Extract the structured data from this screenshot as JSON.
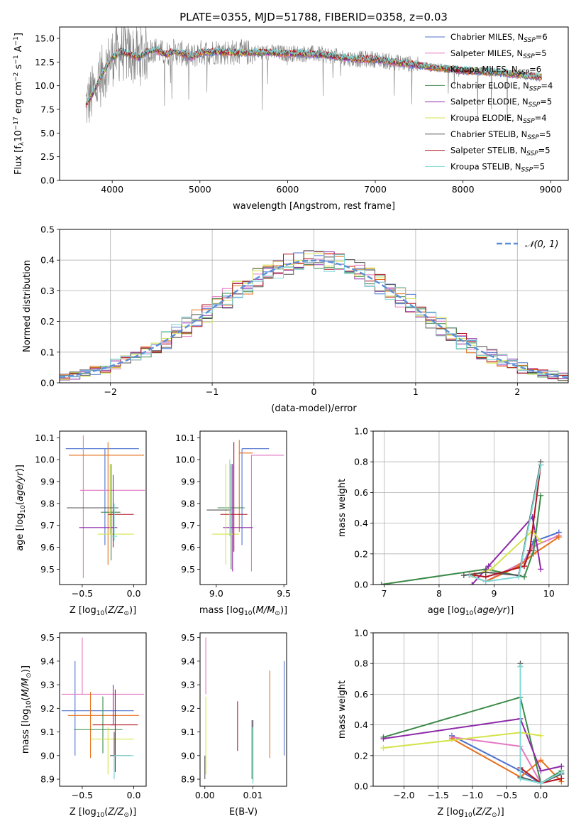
{
  "figure": {
    "title": "PLATE=0355, MJD=51788, FIBERID=0358, z=0.03"
  },
  "models": [
    {
      "name": "Chabrier MILES, N$_{SSP}$=6",
      "label_main": "Chabrier MILES, N",
      "label_sub": "SSP",
      "label_tail": "=6",
      "color": "#4c72d0"
    },
    {
      "name": "Salpeter MILES, N$_{SSP}$=5",
      "label_main": "Salpeter MILES, N",
      "label_sub": "SSP",
      "label_tail": "=5",
      "color": "#e377c2"
    },
    {
      "name": "Kroupa MILES, N$_{SSP}$=6",
      "label_main": "Kroupa MILES, N",
      "label_sub": "SSP",
      "label_tail": "=6",
      "color": "#e6711d"
    },
    {
      "name": "Chabrier ELODIE, N$_{SSP}$=4",
      "label_main": "Chabrier ELODIE, N",
      "label_sub": "SSP",
      "label_tail": "=4",
      "color": "#3d8a4a"
    },
    {
      "name": "Salpeter ELODIE, N$_{SSP}$=5",
      "label_main": "Salpeter ELODIE, N",
      "label_sub": "SSP",
      "label_tail": "=5",
      "color": "#8e2aa8"
    },
    {
      "name": "Kroupa ELODIE, N$_{SSP}$=4",
      "label_main": "Kroupa ELODIE, N",
      "label_sub": "SSP",
      "label_tail": "=4",
      "color": "#d4e34a"
    },
    {
      "name": "Chabrier STELIB, N$_{SSP}$=5",
      "label_main": "Chabrier STELIB, N",
      "label_sub": "SSP",
      "label_tail": "=5",
      "color": "#555555"
    },
    {
      "name": "Salpeter STELIB, N$_{SSP}$=5",
      "label_main": "Salpeter STELIB, N",
      "label_sub": "SSP",
      "label_tail": "=5",
      "color": "#b0141e"
    },
    {
      "name": "Kroupa STELIB, N$_{SSP}$=5",
      "label_main": "Kroupa STELIB, N",
      "label_sub": "SSP",
      "label_tail": "=5",
      "color": "#7fd8d8"
    }
  ],
  "chart_data": [
    {
      "id": "spectrum",
      "type": "line",
      "title": "PLATE=0355, MJD=51788, FIBERID=0358, z=0.03",
      "xlabel": "wavelength [Angstrom, rest frame]",
      "ylabel": "Flux [f$_\\lambda$10$^{-17}$ erg cm$^{-2}$ s$^{-1}$ A$^{-1}$]",
      "xlim": [
        3400,
        9200
      ],
      "ylim": [
        0,
        16.2
      ],
      "xticks": [
        4000,
        5000,
        6000,
        7000,
        8000,
        9000
      ],
      "yticks": [
        0.0,
        2.5,
        5.0,
        7.5,
        10.0,
        12.5,
        15.0
      ],
      "legend_position": "upper right",
      "data_series": {
        "name": "data",
        "color": "#808080",
        "x_range": [
          3700,
          8900
        ]
      },
      "model_curve": {
        "x": [
          3700,
          3800,
          3900,
          4000,
          4100,
          4200,
          4300,
          4400,
          4500,
          4600,
          4700,
          4800,
          4900,
          5000,
          5200,
          5400,
          5600,
          5800,
          6000,
          6200,
          6400,
          6600,
          6800,
          7000,
          7200,
          7400,
          7600,
          7800,
          8000,
          8200,
          8400,
          8600,
          8800,
          8900
        ],
        "y": [
          8.0,
          9.5,
          11.5,
          13.0,
          13.6,
          13.3,
          13.0,
          13.6,
          13.8,
          13.3,
          13.6,
          13.4,
          13.0,
          13.5,
          13.6,
          13.5,
          13.5,
          13.5,
          13.4,
          13.4,
          13.3,
          13.0,
          12.8,
          12.8,
          12.5,
          12.3,
          12.0,
          11.8,
          11.6,
          11.5,
          11.4,
          11.2,
          11.0,
          10.9
        ]
      },
      "model_x_range": [
        3700,
        8900
      ]
    },
    {
      "id": "residuals",
      "type": "histogram",
      "xlabel": "(data-model)/error",
      "ylabel": "Normed distribution",
      "xlim": [
        -2.5,
        2.5
      ],
      "ylim": [
        0,
        0.5
      ],
      "xticks": [
        -2,
        -1,
        0,
        1,
        2
      ],
      "yticks": [
        0.0,
        0.1,
        0.2,
        0.3,
        0.4,
        0.5
      ],
      "reference_curve": {
        "name": "$\\mathcal{N}(0,1)$",
        "label": "𝒩(0, 1)",
        "color": "#5a8fd6",
        "style": "dashed"
      },
      "bin_width": 0.1,
      "bin_start": -2.5
    },
    {
      "id": "age-vs-Z",
      "type": "errorbar",
      "xlabel": "Z [log$_{10}$(Z/Z$_\\odot$)]",
      "ylabel": "age  [log$_{10}$(age/yr)]",
      "xlim": [
        -0.72,
        0.12
      ],
      "ylim": [
        9.43,
        10.13
      ],
      "xticks": [
        -0.5,
        0.0
      ],
      "yticks": [
        9.5,
        9.6,
        9.7,
        9.8,
        9.9,
        10.0,
        10.1
      ],
      "points": [
        {
          "model": 0,
          "x": -0.28,
          "xerr": [
            0.38,
            0.33
          ],
          "y": 10.05,
          "yerr": [
            0.44,
            0.0
          ]
        },
        {
          "model": 1,
          "x": -0.49,
          "xerr": [
            0.03,
            0.6
          ],
          "y": 9.86,
          "yerr": [
            0.4,
            0.25
          ]
        },
        {
          "model": 2,
          "x": -0.25,
          "xerr": [
            0.38,
            0.35
          ],
          "y": 10.02,
          "yerr": [
            0.5,
            0.06
          ]
        },
        {
          "model": 3,
          "x": -0.22,
          "xerr": [
            0.1,
            0.09
          ],
          "y": 9.76,
          "yerr": [
            0.22,
            0.22
          ]
        },
        {
          "model": 4,
          "x": -0.33,
          "xerr": [
            0.2,
            0.17
          ],
          "y": 9.69,
          "yerr": [
            0.0,
            0.0
          ]
        },
        {
          "model": 5,
          "x": -0.23,
          "xerr": [
            0.12,
            0.23
          ],
          "y": 9.66,
          "yerr": [
            0.0,
            0.32
          ]
        },
        {
          "model": 6,
          "x": -0.2,
          "xerr": [
            0.45,
            0.05
          ],
          "y": 9.78,
          "yerr": [
            0.15,
            0.15
          ]
        },
        {
          "model": 7,
          "x": -0.2,
          "xerr": [
            0.05,
            0.2
          ],
          "y": 9.75,
          "yerr": [
            0.15,
            0.02
          ]
        },
        {
          "model": 8,
          "x": -0.19,
          "xerr": [
            0.03,
            0.03
          ],
          "y": 9.65,
          "yerr": [
            0.02,
            0.15
          ]
        }
      ]
    },
    {
      "id": "age-vs-mass",
      "type": "errorbar",
      "xlabel": "mass [log$_{10}$(M/M$_\\odot$)]",
      "ylabel": "",
      "xlim": [
        8.88,
        9.52
      ],
      "ylim": [
        9.43,
        10.13
      ],
      "xticks": [
        9.0,
        9.5
      ],
      "yticks": [
        9.5,
        9.6,
        9.7,
        9.8,
        9.9,
        10.0,
        10.1
      ],
      "points": [
        {
          "model": 0,
          "x": 9.19,
          "xerr": [
            0.0,
            0.2
          ],
          "y": 10.05,
          "yerr": [
            0.44,
            0.0
          ]
        },
        {
          "model": 1,
          "x": 9.26,
          "xerr": [
            0.0,
            0.24
          ],
          "y": 10.02,
          "yerr": [
            0.53,
            0.0
          ]
        },
        {
          "model": 2,
          "x": 9.17,
          "xerr": [
            0.0,
            0.1
          ],
          "y": 10.03,
          "yerr": [
            0.36,
            0.06
          ]
        },
        {
          "model": 3,
          "x": 9.11,
          "xerr": [
            0.1,
            0.1
          ],
          "y": 9.78,
          "yerr": [
            0.28,
            0.2
          ]
        },
        {
          "model": 4,
          "x": 9.12,
          "xerr": [
            0.07,
            0.15
          ],
          "y": 9.69,
          "yerr": [
            0.2,
            0.29
          ]
        },
        {
          "model": 5,
          "x": 9.07,
          "xerr": [
            0.1,
            0.1
          ],
          "y": 9.66,
          "yerr": [
            0.14,
            0.32
          ]
        },
        {
          "model": 6,
          "x": 9.11,
          "xerr": [
            0.18,
            0.0
          ],
          "y": 9.77,
          "yerr": [
            0.0,
            0.0
          ]
        },
        {
          "model": 7,
          "x": 9.13,
          "xerr": [
            0.1,
            0.1
          ],
          "y": 9.75,
          "yerr": [
            0.17,
            0.33
          ]
        },
        {
          "model": 8,
          "x": 9.1,
          "xerr": [
            0.0,
            0.0
          ],
          "y": 9.65,
          "yerr": [
            0.0,
            0.35
          ]
        }
      ]
    },
    {
      "id": "weight-vs-age",
      "type": "line",
      "xlabel": "age  [log$_{10}$(age/yr)]",
      "ylabel": "mass weight",
      "xlim": [
        6.8,
        10.35
      ],
      "ylim": [
        0,
        1.0
      ],
      "xticks": [
        7,
        8,
        9,
        10
      ],
      "yticks": [
        0.0,
        0.2,
        0.4,
        0.6,
        0.8,
        1.0
      ],
      "series": [
        {
          "model": 0,
          "x": [
            8.55,
            8.85,
            9.55,
            9.72,
            10.18
          ],
          "y": [
            0.06,
            0.02,
            0.15,
            0.28,
            0.34
          ]
        },
        {
          "model": 1,
          "x": [
            8.55,
            8.85,
            9.55,
            9.72,
            10.18
          ],
          "y": [
            0.06,
            0.02,
            0.15,
            0.25,
            0.32
          ]
        },
        {
          "model": 2,
          "x": [
            8.55,
            8.85,
            9.45,
            9.72,
            10.18
          ],
          "y": [
            0.06,
            0.02,
            0.12,
            0.2,
            0.31
          ]
        },
        {
          "model": 3,
          "x": [
            6.95,
            8.85,
            9.55,
            9.72,
            9.85
          ],
          "y": [
            0.0,
            0.1,
            0.05,
            0.22,
            0.58
          ]
        },
        {
          "model": 4,
          "x": [
            8.6,
            8.9,
            9.7,
            9.85
          ],
          "y": [
            0.0,
            0.12,
            0.44,
            0.1
          ]
        },
        {
          "model": 5,
          "x": [
            8.6,
            8.95,
            9.7,
            9.85
          ],
          "y": [
            0.06,
            0.1,
            0.35,
            0.28
          ]
        },
        {
          "model": 6,
          "x": [
            8.45,
            8.85,
            9.45,
            9.85
          ],
          "y": [
            0.06,
            0.08,
            0.06,
            0.8
          ]
        },
        {
          "model": 7,
          "x": [
            8.65,
            8.85,
            9.55,
            9.65,
            9.85
          ],
          "y": [
            0.06,
            0.05,
            0.12,
            0.22,
            0.78
          ]
        },
        {
          "model": 8,
          "x": [
            8.55,
            8.85,
            9.45,
            9.85
          ],
          "y": [
            0.06,
            0.02,
            0.05,
            0.78
          ]
        }
      ]
    },
    {
      "id": "mass-vs-Z",
      "type": "errorbar",
      "xlabel": "Z [log$_{10}$(Z/Z$_\\odot$)]",
      "ylabel": "mass [log$_{10}$(M/M$_\\odot$)]",
      "xlim": [
        -0.72,
        0.12
      ],
      "ylim": [
        8.87,
        9.52
      ],
      "xticks": [
        -0.5,
        0.0
      ],
      "yticks": [
        8.9,
        9.0,
        9.1,
        9.2,
        9.3,
        9.4,
        9.5
      ],
      "points": [
        {
          "model": 0,
          "x": -0.57,
          "xerr": [
            0.13,
            0.57
          ],
          "y": 9.19,
          "yerr": [
            0.19,
            0.21
          ]
        },
        {
          "model": 1,
          "x": -0.5,
          "xerr": [
            0.2,
            0.6
          ],
          "y": 9.26,
          "yerr": [
            0.0,
            0.24
          ]
        },
        {
          "model": 2,
          "x": -0.42,
          "xerr": [
            0.22,
            0.47
          ],
          "y": 9.17,
          "yerr": [
            0.18,
            0.1
          ]
        },
        {
          "model": 3,
          "x": -0.3,
          "xerr": [
            0.28,
            0.19
          ],
          "y": 9.11,
          "yerr": [
            0.1,
            0.14
          ]
        },
        {
          "model": 4,
          "x": -0.2,
          "xerr": [
            0.03,
            0.03
          ],
          "y": 9.13,
          "yerr": [
            0.0,
            0.17
          ]
        },
        {
          "model": 5,
          "x": -0.25,
          "xerr": [
            0.17,
            0.25
          ],
          "y": 9.07,
          "yerr": [
            0.15,
            0.05
          ]
        },
        {
          "model": 6,
          "x": -0.19,
          "xerr": [
            0.04,
            0.16
          ],
          "y": 9.0,
          "yerr": [
            0.1,
            0.1
          ]
        },
        {
          "model": 7,
          "x": -0.18,
          "xerr": [
            0.22,
            0.22
          ],
          "y": 9.13,
          "yerr": [
            0.2,
            0.15
          ]
        },
        {
          "model": 8,
          "x": -0.19,
          "xerr": [
            0.0,
            0.19
          ],
          "y": 9.0,
          "yerr": [
            0.1,
            0.0
          ]
        }
      ]
    },
    {
      "id": "mass-vs-ebv",
      "type": "errorbar",
      "xlabel": "E(B-V)",
      "ylabel": "",
      "xlim": [
        -0.001,
        0.017
      ],
      "ylim": [
        8.87,
        9.52
      ],
      "xticks": [
        0.0,
        0.01
      ],
      "yticks": [
        8.9,
        9.0,
        9.1,
        9.2,
        9.3,
        9.4,
        9.5
      ],
      "points": [
        {
          "model": 0,
          "x": 0.0165,
          "y": 9.19,
          "yerr": [
            0.19,
            0.21
          ]
        },
        {
          "model": 1,
          "x": 0.0002,
          "y": 9.38,
          "yerr": [
            0.12,
            0.12
          ]
        },
        {
          "model": 2,
          "x": 0.0135,
          "y": 9.17,
          "yerr": [
            0.18,
            0.19
          ]
        },
        {
          "model": 3,
          "x": 0.0098,
          "y": 9.05,
          "yerr": [
            0.15,
            0.1
          ]
        },
        {
          "model": 4,
          "x": 0.01,
          "y": 9.05,
          "yerr": [
            0.16,
            0.1
          ]
        },
        {
          "model": 5,
          "x": 0.0002,
          "y": 9.07,
          "yerr": [
            0.15,
            0.18
          ]
        },
        {
          "model": 6,
          "x": 0.0,
          "y": 8.95,
          "yerr": [
            0.05,
            0.05
          ]
        },
        {
          "model": 7,
          "x": 0.0068,
          "y": 9.12,
          "yerr": [
            0.1,
            0.11
          ]
        },
        {
          "model": 8,
          "x": 0.01,
          "y": 9.0,
          "yerr": [
            0.12,
            0.12
          ]
        }
      ]
    },
    {
      "id": "weight-vs-Z",
      "type": "line",
      "xlabel": "Z [log$_{10}$(Z/Z$_\\odot$)]",
      "ylabel": "mass weight",
      "xlim": [
        -2.45,
        0.4
      ],
      "ylim": [
        0,
        1.0
      ],
      "xticks": [
        -2.0,
        -1.5,
        -1.0,
        -0.5,
        0.0
      ],
      "yticks": [
        0.0,
        0.2,
        0.4,
        0.6,
        0.8,
        1.0
      ],
      "series": [
        {
          "model": 0,
          "x": [
            -1.3,
            -0.3,
            0.0,
            0.3
          ],
          "y": [
            0.33,
            0.1,
            0.02,
            0.08
          ]
        },
        {
          "model": 1,
          "x": [
            -1.3,
            -0.3,
            0.0,
            0.3
          ],
          "y": [
            0.32,
            0.26,
            0.02,
            0.05
          ]
        },
        {
          "model": 2,
          "x": [
            -1.3,
            -0.3,
            0.0,
            0.3
          ],
          "y": [
            0.31,
            0.06,
            0.17,
            0.03
          ]
        },
        {
          "model": 3,
          "x": [
            -2.3,
            -0.3,
            0.0,
            0.3
          ],
          "y": [
            0.32,
            0.58,
            0.02,
            0.1
          ]
        },
        {
          "model": 4,
          "x": [
            -2.3,
            -0.3,
            0.0,
            0.3
          ],
          "y": [
            0.31,
            0.44,
            0.1,
            0.13
          ]
        },
        {
          "model": 5,
          "x": [
            -2.3,
            -0.3,
            0.0
          ],
          "y": [
            0.25,
            0.35,
            0.33
          ]
        },
        {
          "model": 6,
          "x": [
            -0.3,
            -0.3,
            0.0,
            0.3
          ],
          "y": [
            0.8,
            0.06,
            0.02,
            0.08
          ]
        },
        {
          "model": 7,
          "x": [
            -0.3,
            -0.3,
            0.0,
            0.3
          ],
          "y": [
            0.78,
            0.12,
            0.02,
            0.05
          ]
        },
        {
          "model": 8,
          "x": [
            -0.3,
            -0.3,
            0.0,
            0.3
          ],
          "y": [
            0.78,
            0.05,
            0.02,
            0.09
          ]
        }
      ]
    }
  ]
}
